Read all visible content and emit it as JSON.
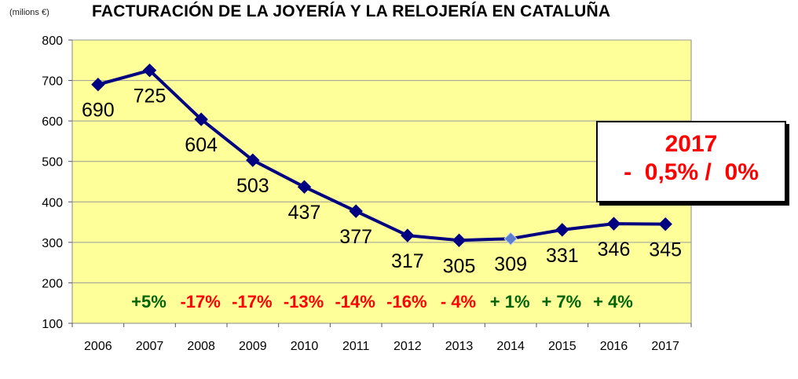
{
  "header": {
    "unit_label": "(milions €)",
    "title": "FACTURACIÓN DE LA JOYERÍA Y LA RELOJERÍA EN CATALUÑA"
  },
  "callout": {
    "year": "2017",
    "change": "-  0,5% /  0%"
  },
  "colors": {
    "plot_background": "#ffff99",
    "line": "#000080",
    "negative": "#ff0000",
    "positive": "#006400"
  },
  "chart_data": {
    "type": "line",
    "title": "FACTURACIÓN DE LA JOYERÍA Y LA RELOJERÍA EN CATALUÑA",
    "ylabel": "(milions €)",
    "xlabel": "",
    "categories": [
      "2006",
      "2007",
      "2008",
      "2009",
      "2010",
      "2011",
      "2012",
      "2013",
      "2014",
      "2015",
      "2016",
      "2017"
    ],
    "values": [
      690,
      725,
      604,
      503,
      437,
      377,
      317,
      305,
      309,
      331,
      346,
      345
    ],
    "ylim": [
      100,
      800
    ],
    "yticks": [
      100,
      200,
      300,
      400,
      500,
      600,
      700,
      800
    ],
    "grid": true,
    "growth_labels": [
      {
        "year": "2007",
        "text": "+5%",
        "sign": "positive"
      },
      {
        "year": "2008",
        "text": "-17%",
        "sign": "negative"
      },
      {
        "year": "2009",
        "text": "-17%",
        "sign": "negative"
      },
      {
        "year": "2010",
        "text": "-13%",
        "sign": "negative"
      },
      {
        "year": "2011",
        "text": "-14%",
        "sign": "negative"
      },
      {
        "year": "2012",
        "text": "-16%",
        "sign": "negative"
      },
      {
        "year": "2013",
        "text": "- 4%",
        "sign": "negative"
      },
      {
        "year": "2014",
        "text": "+ 1%",
        "sign": "positive"
      },
      {
        "year": "2015",
        "text": "+ 7%",
        "sign": "positive"
      },
      {
        "year": "2016",
        "text": "+ 4%",
        "sign": "positive"
      }
    ]
  }
}
